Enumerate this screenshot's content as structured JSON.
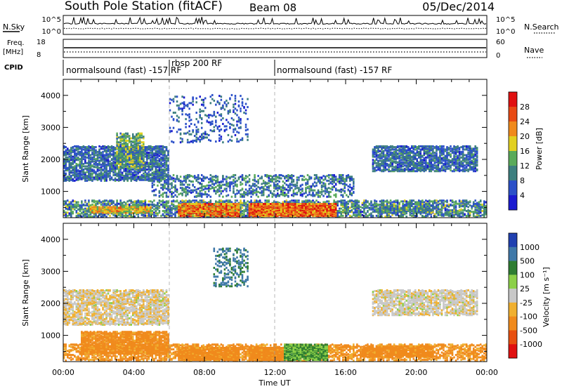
{
  "header": {
    "station": "South Pole Station (fitACF)",
    "beam": "Beam 08",
    "date": "05/Dec/2014"
  },
  "strip_labels": {
    "nsky": "N.Sky",
    "nsky_top": "10^5",
    "nsky_bottom": "10^0",
    "nsearch": "N.Search",
    "nsearch_top": "10^5",
    "nsearch_bottom": "10^0",
    "freq_1": "Freq.",
    "freq_2": "[MHz]",
    "freq_top": "18",
    "freq_bottom": "8",
    "nave": "Nave",
    "nave_top": "60",
    "nave_bottom": "0",
    "cpid": "CPID"
  },
  "cpid_segments": [
    {
      "label": "normalsound (fast) -157 RF",
      "start_h": 0,
      "end_h": 6
    },
    {
      "label": "rbsp 200 RF",
      "start_h": 6,
      "end_h": 12
    },
    {
      "label": "normalsound (fast) -157 RF",
      "start_h": 12,
      "end_h": 24
    }
  ],
  "axes": {
    "x_label": "Time UT",
    "x_ticks": [
      "00:00",
      "04:00",
      "08:00",
      "12:00",
      "16:00",
      "20:00",
      "00:00"
    ],
    "y_label": "Slant Range [km]",
    "y_ticks": [
      "1000",
      "2000",
      "3000",
      "4000"
    ]
  },
  "colorbars": {
    "power": {
      "label": "Power [dB]",
      "ticks": [
        "4",
        "8",
        "12",
        "16",
        "20",
        "24",
        "28"
      ],
      "colors": [
        "#1a1ad0",
        "#2b50c8",
        "#3d7f7f",
        "#5aaa5a",
        "#e2d020",
        "#f08a1c",
        "#e84a14",
        "#e01010"
      ]
    },
    "velocity": {
      "label": "Velocity [m s⁻¹]",
      "ticks": [
        "1000",
        "500",
        "100",
        "25",
        "-25",
        "-100",
        "-500",
        "-1000"
      ],
      "colors": [
        "#2040b0",
        "#3f78a8",
        "#2e7d32",
        "#8cd048",
        "#c8c8c8",
        "#f0b030",
        "#f08a1c",
        "#e85010",
        "#e01010"
      ]
    }
  },
  "chart_data": {
    "type": "heatmap",
    "title": "South Pole Station (fitACF) Beam 08 05/Dec/2014",
    "xlabel": "Time UT",
    "ylabel": "Slant Range [km]",
    "xlim_hours": [
      0,
      24
    ],
    "ylim_km": [
      180,
      4500
    ],
    "panels": [
      {
        "name": "Power",
        "units": "dB",
        "scale": [
          0,
          30
        ],
        "patches": [
          {
            "t": [
              0.0,
              6.0
            ],
            "r": [
              1300,
              2400
            ],
            "density": 0.55,
            "vmin": 3,
            "vmax": 12
          },
          {
            "t": [
              3.0,
              4.6
            ],
            "r": [
              1700,
              2800
            ],
            "density": 0.45,
            "vmin": 6,
            "vmax": 18
          },
          {
            "t": [
              0.0,
              24.0
            ],
            "r": [
              180,
              700
            ],
            "density": 0.45,
            "vmin": 3,
            "vmax": 16
          },
          {
            "t": [
              6.5,
              10.0
            ],
            "r": [
              200,
              600
            ],
            "density": 0.85,
            "vmin": 14,
            "vmax": 30
          },
          {
            "t": [
              10.5,
              15.5
            ],
            "r": [
              200,
              600
            ],
            "density": 0.9,
            "vmin": 16,
            "vmax": 30
          },
          {
            "t": [
              1.5,
              5.0
            ],
            "r": [
              300,
              500
            ],
            "density": 0.8,
            "vmin": 12,
            "vmax": 24
          },
          {
            "t": [
              5.0,
              16.5
            ],
            "r": [
              800,
              1500
            ],
            "density": 0.3,
            "vmin": 3,
            "vmax": 14
          },
          {
            "t": [
              17.5,
              23.5
            ],
            "r": [
              1600,
              2400
            ],
            "density": 0.55,
            "vmin": 3,
            "vmax": 12
          },
          {
            "t": [
              6.0,
              10.5
            ],
            "r": [
              2500,
              4000
            ],
            "density": 0.12,
            "vmin": 3,
            "vmax": 10
          },
          {
            "t": [
              18.0,
              21.0
            ],
            "r": [
              300,
              600
            ],
            "density": 0.5,
            "vmin": 4,
            "vmax": 16
          }
        ]
      },
      {
        "name": "Velocity",
        "units": "m s-1",
        "scale": [
          -1000,
          1000
        ],
        "patches": [
          {
            "t": [
              0.0,
              6.0
            ],
            "r": [
              1300,
              2400
            ],
            "density": 0.55,
            "vmin": -60,
            "vmax": 30
          },
          {
            "t": [
              0.0,
              24.0
            ],
            "r": [
              180,
              700
            ],
            "density": 0.45,
            "vmin": -300,
            "vmax": -30
          },
          {
            "t": [
              6.5,
              10.0
            ],
            "r": [
              200,
              600
            ],
            "density": 0.85,
            "vmin": -400,
            "vmax": -60
          },
          {
            "t": [
              10.5,
              12.5
            ],
            "r": [
              200,
              600
            ],
            "density": 0.9,
            "vmin": -400,
            "vmax": -60
          },
          {
            "t": [
              12.5,
              15.0
            ],
            "r": [
              200,
              700
            ],
            "density": 0.85,
            "vmin": 30,
            "vmax": 180
          },
          {
            "t": [
              1.0,
              6.0
            ],
            "r": [
              400,
              1100
            ],
            "density": 0.7,
            "vmin": -400,
            "vmax": -60
          },
          {
            "t": [
              17.5,
              23.5
            ],
            "r": [
              1600,
              2400
            ],
            "density": 0.55,
            "vmin": -40,
            "vmax": 30
          },
          {
            "t": [
              8.5,
              10.5
            ],
            "r": [
              2500,
              3700
            ],
            "density": 0.25,
            "vmin": 300,
            "vmax": 900
          },
          {
            "t": [
              17.0,
              21.0
            ],
            "r": [
              300,
              650
            ],
            "density": 0.65,
            "vmin": -350,
            "vmax": -80
          }
        ]
      }
    ]
  }
}
